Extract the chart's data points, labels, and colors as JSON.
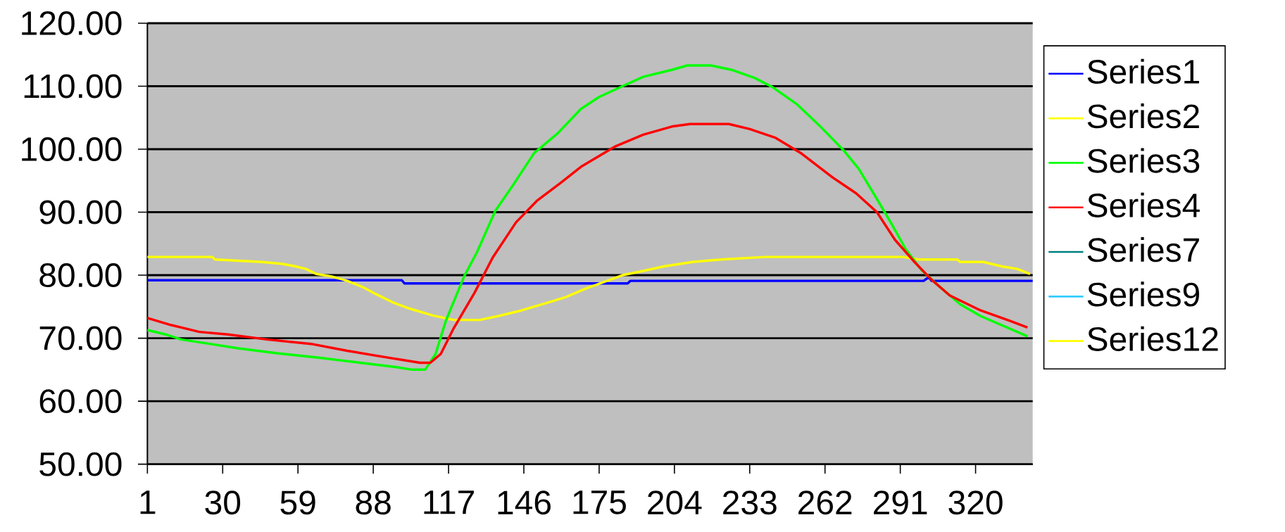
{
  "chart_data": {
    "type": "line",
    "xlim": [
      1,
      342
    ],
    "xticks": [
      1,
      30,
      59,
      88,
      117,
      146,
      175,
      204,
      233,
      262,
      291,
      320
    ],
    "ylim": [
      50,
      120
    ],
    "yticks": [
      {
        "value": 50,
        "label": "50.00"
      },
      {
        "value": 60,
        "label": "60.00"
      },
      {
        "value": 70,
        "label": "70.00"
      },
      {
        "value": 80,
        "label": "80.00"
      },
      {
        "value": 90,
        "label": "90.00"
      },
      {
        "value": 100,
        "label": "100.00"
      },
      {
        "value": 110,
        "label": "110.00"
      },
      {
        "value": 120,
        "label": "120.00"
      }
    ],
    "grid": "y",
    "legend": "right",
    "marker": "none",
    "line_style": "solid",
    "series": [
      {
        "name": "Series1",
        "color": "#0000ff",
        "x": [
          1,
          99,
          100,
          186,
          187,
          300,
          302,
          303,
          342
        ],
        "values": [
          79.2,
          79.2,
          78.7,
          78.7,
          79.1,
          79.1,
          79.7,
          79.1,
          79.1
        ]
      },
      {
        "name": "Series2",
        "color": "#ffff00",
        "x": [
          1,
          26,
          27,
          45,
          53,
          58,
          62,
          66,
          72,
          78,
          84,
          89,
          96,
          102,
          111,
          119,
          129,
          136,
          145,
          154,
          162,
          170,
          176,
          184,
          191,
          200,
          211,
          222,
          239,
          292,
          298,
          313,
          314,
          323,
          330,
          336,
          341
        ],
        "values": [
          82.9,
          82.9,
          82.5,
          82.1,
          81.8,
          81.4,
          81.0,
          80.2,
          79.8,
          79.1,
          78.1,
          77.0,
          75.6,
          74.7,
          73.6,
          72.9,
          72.9,
          73.5,
          74.4,
          75.5,
          76.5,
          77.9,
          78.8,
          80.0,
          80.6,
          81.4,
          82.1,
          82.5,
          82.9,
          82.9,
          82.5,
          82.5,
          82.1,
          82.1,
          81.4,
          81.0,
          80.2
        ]
      },
      {
        "name": "Series3",
        "color": "#00ff00",
        "x": [
          1,
          8,
          14,
          25,
          36,
          51,
          67,
          83,
          97,
          103,
          108,
          112,
          116,
          123,
          128,
          135,
          142,
          150,
          159,
          168,
          175,
          184,
          192,
          203,
          209,
          218,
          226,
          235,
          242,
          251,
          260,
          269,
          275,
          282,
          288,
          293,
          299,
          305,
          314,
          322,
          331,
          340
        ],
        "values": [
          71.3,
          70.6,
          69.8,
          69.1,
          68.4,
          67.6,
          66.9,
          66.1,
          65.4,
          65.0,
          65.0,
          67.5,
          72.8,
          79.8,
          83.7,
          90.2,
          94.4,
          99.4,
          102.5,
          106.4,
          108.3,
          110.0,
          111.5,
          112.6,
          113.3,
          113.3,
          112.6,
          111.3,
          109.8,
          107.2,
          103.7,
          99.9,
          96.9,
          92.1,
          87.9,
          84.2,
          80.9,
          78.6,
          75.4,
          73.5,
          71.9,
          70.3
        ]
      },
      {
        "name": "Series4",
        "color": "#ff0000",
        "x": [
          1,
          10,
          21,
          32,
          47,
          64,
          78,
          94,
          106,
          110,
          114,
          119,
          127,
          134,
          143,
          151,
          160,
          168,
          181,
          192,
          203,
          210,
          225,
          233,
          243,
          253,
          265,
          274,
          282,
          289,
          296,
          303,
          310,
          322,
          333,
          340
        ],
        "values": [
          73.2,
          72.1,
          71.0,
          70.6,
          69.8,
          69.1,
          68.0,
          66.9,
          66.1,
          66.1,
          67.5,
          71.6,
          77.2,
          82.8,
          88.4,
          91.8,
          94.6,
          97.2,
          100.4,
          102.3,
          103.6,
          104.0,
          104.0,
          103.2,
          101.8,
          99.3,
          95.5,
          93.0,
          90.0,
          85.6,
          82.3,
          79.3,
          76.8,
          74.4,
          72.8,
          71.7
        ]
      },
      {
        "name": "Series7",
        "color": "#008080"
      },
      {
        "name": "Series9",
        "color": "#33ccff"
      },
      {
        "name": "Series12",
        "color": "#ffff00"
      }
    ]
  }
}
